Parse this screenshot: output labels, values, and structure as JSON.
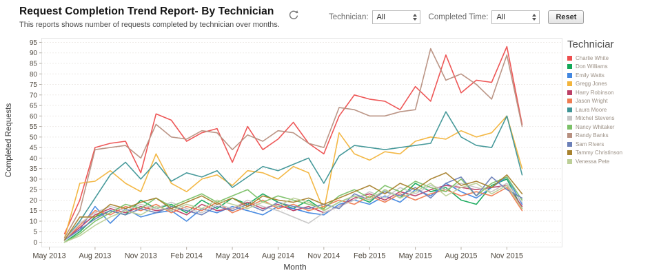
{
  "header": {
    "title": "Request Completion Trend Report- By Technician",
    "subtitle": "This reports shows number of requests completed by technician over months."
  },
  "controls": {
    "technician_label": "Technician:",
    "technician_value": "All",
    "completed_time_label": "Completed Time:",
    "completed_time_value": "All",
    "reset_label": "Reset"
  },
  "chart_data": {
    "type": "line",
    "xlabel": "Month",
    "ylabel": "Completed Requests",
    "ylim": [
      0,
      95
    ],
    "y_tick_step": 5,
    "grid": "horizontal-dotted",
    "legend_position": "right",
    "legend_title": "Techniciar",
    "x_ticks": [
      "May 2013",
      "Aug 2013",
      "Nov 2013",
      "Feb 2014",
      "May 2014",
      "Aug 2014",
      "Nov 2014",
      "Feb 2015",
      "May 2015",
      "Aug 2015",
      "Nov 2015"
    ],
    "x": [
      "Jun 2013",
      "Jul 2013",
      "Aug 2013",
      "Sep 2013",
      "Oct 2013",
      "Nov 2013",
      "Dec 2013",
      "Jan 2014",
      "Feb 2014",
      "Mar 2014",
      "Apr 2014",
      "May 2014",
      "Jun 2014",
      "Jul 2014",
      "Aug 2014",
      "Sep 2014",
      "Oct 2014",
      "Nov 2014",
      "Dec 2014",
      "Jan 2015",
      "Feb 2015",
      "Mar 2015",
      "Apr 2015",
      "May 2015",
      "Jun 2015",
      "Jul 2015",
      "Aug 2015",
      "Sep 2015",
      "Oct 2015",
      "Nov 2015",
      "Dec 2015"
    ],
    "series": [
      {
        "name": "Charlie White",
        "color": "#ed4e4e",
        "values": [
          4,
          20,
          45,
          47,
          48,
          33,
          61,
          58,
          48,
          52,
          54,
          38,
          55,
          44,
          49,
          57,
          47,
          42,
          60,
          70,
          68,
          67,
          63,
          74,
          67,
          89,
          71,
          77,
          76,
          93,
          56
        ]
      },
      {
        "name": "Don Williams",
        "color": "#13a858",
        "values": [
          0,
          5,
          12,
          15,
          13,
          20,
          16,
          18,
          14,
          20,
          16,
          21,
          18,
          23,
          19,
          16,
          20,
          15,
          19,
          22,
          19,
          25,
          21,
          28,
          24,
          26,
          20,
          18,
          27,
          30,
          16
        ]
      },
      {
        "name": "Emily Watts",
        "color": "#4287e0",
        "values": [
          1,
          6,
          17,
          9,
          16,
          12,
          14,
          15,
          10,
          16,
          14,
          17,
          15,
          13,
          17,
          16,
          14,
          13,
          18,
          20,
          18,
          22,
          19,
          25,
          22,
          28,
          24,
          21,
          26,
          31,
          18
        ]
      },
      {
        "name": "Gregg Jones",
        "color": "#f2b43c",
        "values": [
          2,
          28,
          29,
          34,
          28,
          24,
          42,
          28,
          24,
          30,
          32,
          27,
          34,
          33,
          30,
          36,
          33,
          15,
          52,
          42,
          39,
          43,
          42,
          48,
          50,
          49,
          53,
          50,
          52,
          60,
          35
        ]
      },
      {
        "name": "Harry Robinson",
        "color": "#bc3f66",
        "values": [
          1,
          7,
          13,
          16,
          14,
          17,
          15,
          16,
          13,
          18,
          15,
          16,
          19,
          16,
          18,
          15,
          17,
          14,
          17,
          21,
          23,
          20,
          24,
          22,
          25,
          27,
          26,
          25,
          26,
          27,
          17
        ]
      },
      {
        "name": "Jason Wright",
        "color": "#ef7c52",
        "values": [
          1,
          8,
          15,
          13,
          17,
          15,
          18,
          14,
          17,
          15,
          19,
          14,
          17,
          20,
          16,
          18,
          15,
          17,
          20,
          18,
          22,
          19,
          23,
          20,
          23,
          25,
          22,
          24,
          22,
          26,
          15
        ]
      },
      {
        "name": "Laura Moore",
        "color": "#3e9596",
        "values": [
          1,
          10,
          21,
          32,
          38,
          30,
          38,
          29,
          33,
          31,
          34,
          26,
          31,
          36,
          34,
          37,
          40,
          28,
          41,
          46,
          45,
          44,
          45,
          46,
          47,
          62,
          50,
          46,
          45,
          60,
          32
        ]
      },
      {
        "name": "Mitchel Stevens",
        "color": "#c6c6c6",
        "values": [
          1,
          9,
          14,
          17,
          15,
          18,
          16,
          19,
          16,
          14,
          18,
          16,
          20,
          17,
          15,
          12,
          9,
          14,
          17,
          20,
          24,
          21,
          26,
          23,
          27,
          25,
          28,
          26,
          24,
          28,
          19
        ]
      },
      {
        "name": "Nancy Whitaker",
        "color": "#7cc168",
        "values": [
          0,
          4,
          10,
          14,
          18,
          16,
          21,
          17,
          20,
          23,
          19,
          22,
          25,
          19,
          22,
          20,
          18,
          16,
          22,
          25,
          21,
          27,
          24,
          29,
          26,
          24,
          30,
          22,
          28,
          31,
          20
        ]
      },
      {
        "name": "Randy Banks",
        "color": "#b78f7f",
        "values": [
          2,
          15,
          44,
          45,
          46,
          40,
          56,
          50,
          49,
          53,
          52,
          44,
          51,
          48,
          53,
          52,
          47,
          45,
          64,
          63,
          60,
          60,
          62,
          63,
          92,
          77,
          80,
          75,
          68,
          89,
          55
        ]
      },
      {
        "name": "Sam Rivers",
        "color": "#6b80b8",
        "values": [
          1,
          6,
          11,
          15,
          13,
          16,
          14,
          17,
          15,
          13,
          17,
          15,
          18,
          15,
          19,
          17,
          16,
          18,
          16,
          23,
          20,
          24,
          22,
          26,
          21,
          28,
          31,
          22,
          31,
          25,
          21
        ]
      },
      {
        "name": "Tammy Christinson",
        "color": "#a8822e",
        "values": [
          1,
          12,
          12,
          18,
          16,
          19,
          21,
          16,
          19,
          22,
          18,
          21,
          17,
          22,
          20,
          19,
          21,
          18,
          21,
          24,
          27,
          23,
          28,
          25,
          30,
          33,
          27,
          29,
          26,
          32,
          23
        ]
      },
      {
        "name": "Venessa Pete",
        "color": "#bccf97",
        "values": [
          0,
          3,
          8,
          12,
          15,
          13,
          17,
          15,
          18,
          16,
          20,
          18,
          16,
          19,
          17,
          21,
          19,
          15,
          19,
          22,
          20,
          25,
          21,
          24,
          28,
          22,
          26,
          28,
          23,
          27,
          16
        ]
      }
    ]
  }
}
